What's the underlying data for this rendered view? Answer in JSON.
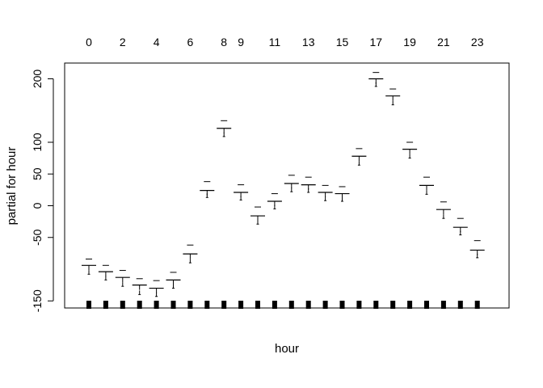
{
  "chart_data": {
    "type": "scatter",
    "title": "",
    "xlabel": "hour",
    "ylabel": "partial for hour",
    "xlim": [
      -0.5,
      23.5
    ],
    "ylim": [
      -160,
      220
    ],
    "yticks": [
      -150,
      -50,
      0,
      50,
      100,
      200
    ],
    "ytick_labels": [
      "-150",
      "-50",
      "0",
      "50",
      "100",
      "200"
    ],
    "x_top_tick_labels": [
      "0",
      "2",
      "4",
      "6",
      "8",
      "9",
      "11",
      "13",
      "15",
      "17",
      "19",
      "21",
      "23"
    ],
    "grid": false,
    "legend": "none",
    "categories": [
      0,
      1,
      2,
      3,
      4,
      5,
      6,
      7,
      8,
      9,
      10,
      11,
      12,
      13,
      14,
      15,
      16,
      17,
      18,
      19,
      20,
      21,
      22,
      23
    ],
    "estimate": [
      -94,
      -104,
      -113,
      -125,
      -130,
      -117,
      -76,
      24,
      122,
      21,
      -16,
      7,
      35,
      33,
      21,
      19,
      78,
      200,
      173,
      89,
      32,
      -6,
      -34,
      -70
    ],
    "upper": [
      -84,
      -94,
      -102,
      -115,
      -118,
      -105,
      -62,
      38,
      134,
      33,
      -2,
      19,
      48,
      45,
      32,
      30,
      90,
      210,
      184,
      100,
      45,
      6,
      -20,
      -55
    ],
    "lower": [
      -108,
      -117,
      -127,
      -140,
      -143,
      -130,
      -90,
      13,
      109,
      9,
      -29,
      -5,
      22,
      21,
      8,
      7,
      64,
      188,
      159,
      75,
      18,
      -20,
      -46,
      -82
    ],
    "rug_color": "#000000"
  }
}
